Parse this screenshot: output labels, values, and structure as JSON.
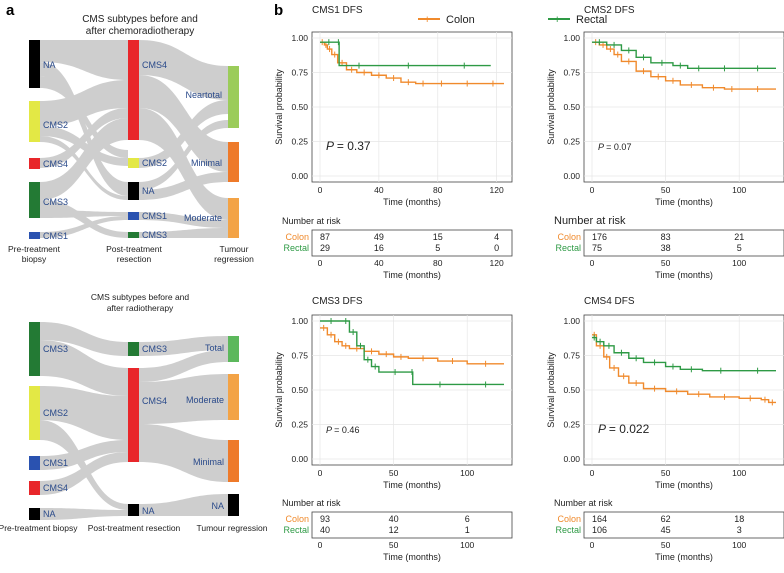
{
  "panel_a_label": "a",
  "panel_b_label": "b",
  "colors": {
    "colon": "#f08a2c",
    "rectal": "#2e9a45",
    "cms1": "#2a52b0",
    "cms2": "#e3e845",
    "cms3": "#237a34",
    "cms4": "#e8262a",
    "na": "#000000",
    "flow": "#c4c4c4",
    "reg_nt": "#9bcc5a",
    "reg_min": "#ee7a2a",
    "reg_mod": "#f3a346",
    "reg_total": "#5cb85c"
  },
  "sankey_top": {
    "title_line1": "CMS subtypes before and",
    "title_line2": "after chemoradiotherapy",
    "pre_nodes": [
      "NA",
      "CMS2",
      "CMS4",
      "CMS3",
      "CMS1"
    ],
    "post_nodes": [
      "CMS4",
      "CMS2",
      "NA",
      "CMS1",
      "CMS3"
    ],
    "reg_nodes": [
      "Neartotal",
      "Minimal",
      "Moderate"
    ],
    "col1_line1": "Pre-treatment",
    "col1_line2": "biopsy",
    "col2_line1": "Post-treatment",
    "col2_line2": "resection",
    "col3_line1": "Tumour",
    "col3_line2": "regression"
  },
  "sankey_bottom": {
    "title_line1": "CMS subtypes before and",
    "title_line2": "after radiotherapy",
    "pre_nodes": [
      "CMS3",
      "CMS2",
      "CMS1",
      "CMS4",
      "NA"
    ],
    "post_nodes": [
      "CMS3",
      "CMS4",
      "NA"
    ],
    "reg_nodes": [
      "Total",
      "Moderate",
      "Minimal",
      "NA"
    ],
    "col1": "Pre-treatment biopsy",
    "col2": "Post-treatment resection",
    "col3": "Tumour regression"
  },
  "legend": {
    "colon": "Colon",
    "rectal": "Rectal"
  },
  "chart_data": [
    {
      "type": "line",
      "title": "CMS1 DFS",
      "xlabel": "Time (months)",
      "ylabel": "Survival probability",
      "xlim": [
        0,
        125
      ],
      "ylim": [
        0,
        1
      ],
      "xticks": [
        0,
        40,
        80,
        120
      ],
      "yticks": [
        "0.00",
        "0.25",
        "0.50",
        "0.75",
        "1.00"
      ],
      "pvalue": "= 0.37",
      "series": [
        {
          "name": "Colon",
          "x": [
            0,
            3,
            5,
            8,
            12,
            18,
            25,
            35,
            45,
            55,
            65,
            75,
            90,
            110,
            125
          ],
          "y": [
            0.97,
            0.95,
            0.92,
            0.88,
            0.82,
            0.77,
            0.75,
            0.73,
            0.71,
            0.68,
            0.67,
            0.67,
            0.67,
            0.67,
            0.67
          ]
        },
        {
          "name": "Rectal",
          "x": [
            0,
            12,
            13,
            40,
            80,
            116
          ],
          "y": [
            0.97,
            0.97,
            0.8,
            0.8,
            0.8,
            0.8
          ]
        }
      ],
      "risk_title": "Number at risk",
      "risk_ticks": [
        0,
        40,
        80,
        120
      ],
      "risk": {
        "Colon": [
          "87",
          "49",
          "15",
          "4"
        ],
        "Rectal": [
          "29",
          "16",
          "5",
          "0"
        ]
      }
    },
    {
      "type": "line",
      "title": "CMS2 DFS",
      "xlabel": "Time (months)",
      "ylabel": "Survival probability",
      "xlim": [
        0,
        125
      ],
      "ylim": [
        0,
        1
      ],
      "xticks": [
        0,
        50,
        100
      ],
      "yticks": [
        "0.00",
        "0.25",
        "0.50",
        "0.75",
        "1.00"
      ],
      "pvalue": "= 0.07",
      "series": [
        {
          "name": "Colon",
          "x": [
            0,
            5,
            10,
            15,
            20,
            30,
            40,
            50,
            60,
            75,
            90,
            100,
            125
          ],
          "y": [
            0.97,
            0.95,
            0.92,
            0.88,
            0.83,
            0.76,
            0.72,
            0.69,
            0.66,
            0.64,
            0.63,
            0.63,
            0.63
          ]
        },
        {
          "name": "Rectal",
          "x": [
            0,
            10,
            20,
            30,
            40,
            55,
            65,
            80,
            100,
            125
          ],
          "y": [
            0.97,
            0.95,
            0.91,
            0.86,
            0.82,
            0.8,
            0.78,
            0.78,
            0.78,
            0.78
          ]
        }
      ],
      "risk_title": "Number at risk",
      "risk_ticks": [
        0,
        50,
        100
      ],
      "risk": {
        "Colon": [
          "176",
          "83",
          "21"
        ],
        "Rectal": [
          "75",
          "38",
          "5"
        ]
      }
    },
    {
      "type": "line",
      "title": "CMS3 DFS",
      "xlabel": "Time (months)",
      "ylabel": "Survival probability",
      "xlim": [
        0,
        125
      ],
      "ylim": [
        0,
        1
      ],
      "xticks": [
        0,
        50,
        100
      ],
      "yticks": [
        "0.00",
        "0.25",
        "0.50",
        "0.75",
        "1.00"
      ],
      "pvalue": "= 0.46",
      "series": [
        {
          "name": "Colon",
          "x": [
            0,
            5,
            10,
            15,
            20,
            30,
            40,
            50,
            60,
            80,
            100,
            125
          ],
          "y": [
            0.95,
            0.9,
            0.85,
            0.82,
            0.8,
            0.78,
            0.76,
            0.74,
            0.73,
            0.71,
            0.69,
            0.69
          ]
        },
        {
          "name": "Rectal",
          "x": [
            0,
            15,
            20,
            25,
            30,
            35,
            40,
            62,
            63,
            100,
            125
          ],
          "y": [
            1.0,
            1.0,
            0.92,
            0.82,
            0.72,
            0.67,
            0.63,
            0.63,
            0.54,
            0.54,
            0.54
          ]
        }
      ],
      "risk_title": "Number at risk",
      "risk_ticks": [
        0,
        50,
        100
      ],
      "risk": {
        "Colon": [
          "93",
          "40",
          "6"
        ],
        "Rectal": [
          "40",
          "12",
          "1"
        ]
      }
    },
    {
      "type": "line",
      "title": "CMS4 DFS",
      "xlabel": "Time (months)",
      "ylabel": "Survival probability",
      "xlim": [
        0,
        125
      ],
      "ylim": [
        0,
        1
      ],
      "xticks": [
        0,
        50,
        100
      ],
      "yticks": [
        "0.00",
        "0.25",
        "0.50",
        "0.75",
        "1.00"
      ],
      "pvalue": "= 0.022",
      "series": [
        {
          "name": "Colon",
          "x": [
            0,
            3,
            8,
            12,
            18,
            25,
            35,
            50,
            65,
            80,
            100,
            115,
            120,
            125
          ],
          "y": [
            0.9,
            0.82,
            0.74,
            0.66,
            0.6,
            0.55,
            0.51,
            0.49,
            0.47,
            0.45,
            0.44,
            0.43,
            0.41,
            0.41
          ]
        },
        {
          "name": "Rectal",
          "x": [
            0,
            3,
            8,
            15,
            25,
            35,
            50,
            60,
            75,
            100,
            125
          ],
          "y": [
            0.88,
            0.85,
            0.82,
            0.77,
            0.73,
            0.7,
            0.67,
            0.65,
            0.64,
            0.64,
            0.64
          ]
        }
      ],
      "risk_title": "Number at risk",
      "risk_ticks": [
        0,
        50,
        100
      ],
      "risk": {
        "Colon": [
          "164",
          "62",
          "18"
        ],
        "Rectal": [
          "106",
          "45",
          "3"
        ]
      }
    }
  ]
}
